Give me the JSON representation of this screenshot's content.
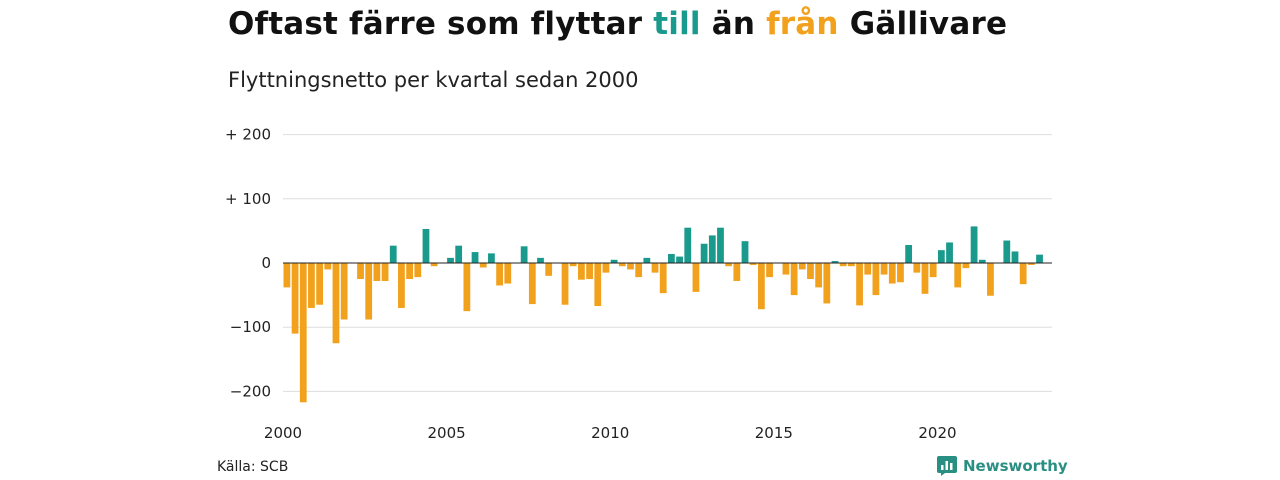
{
  "title": {
    "part1": "Oftast färre som flyttar ",
    "pos_word": "till",
    "part2": " än ",
    "neg_word": "från",
    "part3": " Gällivare"
  },
  "subtitle": "Flyttningsnetto per kvartal sedan 2000",
  "source": "Källa: SCB",
  "brand": {
    "name": "Newsworthy",
    "icon": "newsworthy-logo-icon"
  },
  "colors": {
    "positive": "#1a9a8c",
    "negative": "#f2a11d",
    "grid": "#dddddd"
  },
  "chart_data": {
    "type": "bar",
    "x_start": 2000,
    "periods_per_year": 4,
    "y_ticks": [
      {
        "value": 200,
        "label": "+ 200"
      },
      {
        "value": 100,
        "label": "+ 100"
      },
      {
        "value": 0,
        "label": "0"
      },
      {
        "value": -100,
        "label": "−100"
      },
      {
        "value": -200,
        "label": "−200"
      }
    ],
    "x_ticks": [
      {
        "value": 2000,
        "label": "2000"
      },
      {
        "value": 2005,
        "label": "2005"
      },
      {
        "value": 2010,
        "label": "2010"
      },
      {
        "value": 2015,
        "label": "2015"
      },
      {
        "value": 2020,
        "label": "2020"
      }
    ],
    "ylim": [
      -215,
      200
    ],
    "xlim": [
      2000,
      2023.5
    ],
    "grid": true,
    "values": [
      -38,
      -110,
      -217,
      -70,
      -65,
      -10,
      -125,
      -88,
      0,
      -25,
      -88,
      -28,
      -28,
      27,
      -70,
      -25,
      -22,
      53,
      -5,
      0,
      8,
      27,
      -75,
      17,
      -7,
      15,
      -35,
      -32,
      0,
      26,
      -64,
      8,
      -20,
      0,
      -65,
      -5,
      -26,
      -25,
      -67,
      -15,
      5,
      -5,
      -10,
      -22,
      8,
      -15,
      -47,
      14,
      10,
      55,
      -45,
      30,
      43,
      55,
      -5,
      -28,
      34,
      -3,
      -72,
      -22,
      0,
      -18,
      -50,
      -10,
      -25,
      -38,
      -63,
      3,
      -5,
      -5,
      -66,
      -18,
      -50,
      -18,
      -32,
      -30,
      28,
      -15,
      -48,
      -22,
      20,
      32,
      -38,
      -8,
      57,
      5,
      -51,
      0,
      35,
      18,
      -33,
      -3,
      13
    ]
  }
}
